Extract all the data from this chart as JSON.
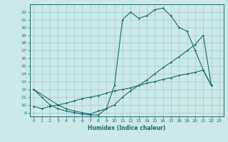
{
  "xlabel": "Humidex (Indice chaleur)",
  "bg_color": "#cce8e8",
  "line_color": "#1a6b6b",
  "grid_color": "#a0cccc",
  "xlim": [
    -0.5,
    23.5
  ],
  "ylim": [
    8.5,
    23.0
  ],
  "xticks": [
    0,
    1,
    2,
    3,
    4,
    5,
    6,
    7,
    8,
    9,
    10,
    11,
    12,
    13,
    14,
    15,
    16,
    17,
    18,
    19,
    20,
    21,
    22,
    23
  ],
  "yticks": [
    9,
    10,
    11,
    12,
    13,
    14,
    15,
    16,
    17,
    18,
    19,
    20,
    21,
    22
  ],
  "line1_x": [
    0,
    1,
    2,
    3,
    4,
    5,
    6,
    7,
    8,
    9,
    10,
    11,
    12,
    13,
    14,
    15,
    16,
    17,
    18,
    19,
    20,
    21,
    22
  ],
  "line1_y": [
    12,
    11,
    10,
    9.5,
    9.2,
    9.0,
    8.8,
    8.7,
    8.7,
    9.5,
    12.5,
    21.0,
    22.0,
    21.2,
    21.5,
    22.3,
    22.5,
    21.5,
    20.0,
    19.5,
    17.0,
    14.5,
    12.5
  ],
  "line2_x": [
    0,
    3,
    4,
    5,
    6,
    7,
    8,
    9,
    10,
    11,
    12,
    13,
    14,
    15,
    16,
    17,
    18,
    19,
    20,
    21,
    22
  ],
  "line2_y": [
    12,
    10.0,
    9.5,
    9.2,
    9.0,
    8.8,
    9.2,
    9.5,
    10.0,
    11.0,
    11.8,
    12.5,
    13.2,
    14.0,
    14.8,
    15.5,
    16.2,
    17.0,
    17.8,
    19.0,
    12.5
  ],
  "line3_x": [
    0,
    1,
    2,
    3,
    4,
    5,
    6,
    7,
    8,
    9,
    10,
    11,
    12,
    13,
    14,
    15,
    16,
    17,
    18,
    19,
    20,
    21,
    22
  ],
  "line3_y": [
    9.8,
    9.5,
    9.8,
    10.0,
    10.2,
    10.5,
    10.8,
    11.0,
    11.2,
    11.5,
    11.8,
    12.0,
    12.2,
    12.5,
    12.8,
    13.0,
    13.3,
    13.5,
    13.8,
    14.0,
    14.2,
    14.5,
    12.5
  ]
}
